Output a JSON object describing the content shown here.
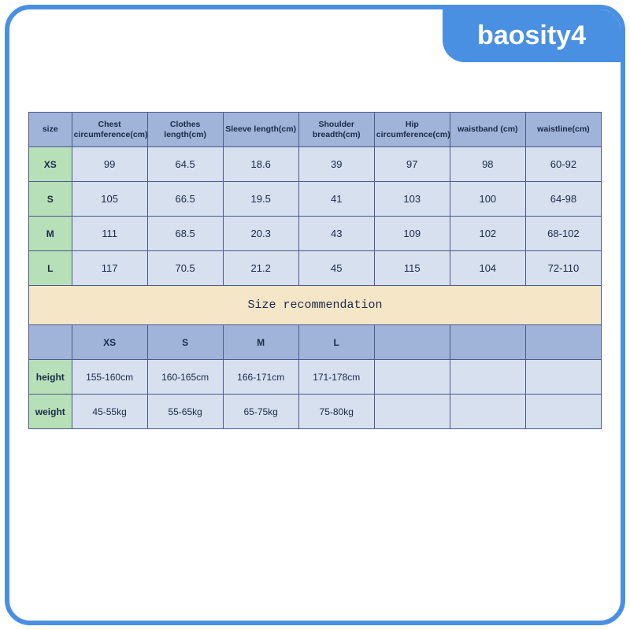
{
  "brand": "baosity4",
  "table1": {
    "headers": [
      "size",
      "Chest circumference(cm)",
      "Clothes length(cm)",
      "Sleeve length(cm)",
      "Shoulder breadth(cm)",
      "Hip circumference(cm)",
      "waistband (cm)",
      "waistline(cm)"
    ],
    "rows": [
      {
        "size": "XS",
        "vals": [
          "99",
          "64.5",
          "18.6",
          "39",
          "97",
          "98",
          "60-92"
        ]
      },
      {
        "size": "S",
        "vals": [
          "105",
          "66.5",
          "19.5",
          "41",
          "103",
          "100",
          "64-98"
        ]
      },
      {
        "size": "M",
        "vals": [
          "111",
          "68.5",
          "20.3",
          "43",
          "109",
          "102",
          "68-102"
        ]
      },
      {
        "size": "L",
        "vals": [
          "117",
          "70.5",
          "21.2",
          "45",
          "115",
          "104",
          "72-110"
        ]
      }
    ]
  },
  "recommendation": {
    "banner": "Size recommendation",
    "cols": [
      "XS",
      "S",
      "M",
      "L"
    ],
    "rows": [
      {
        "label": "height",
        "vals": [
          "155-160cm",
          "160-165cm",
          "166-171cm",
          "171-178cm"
        ]
      },
      {
        "label": "weight",
        "vals": [
          "45-55kg",
          "55-65kg",
          "65-75kg",
          "75-80kg"
        ]
      }
    ]
  },
  "colors": {
    "frame": "#4a90e2",
    "header_bg": "#9fb4d8",
    "size_bg": "#b8e0b8",
    "data_bg": "#d6e0ef",
    "banner_bg": "#f5e6c8",
    "border": "#4a5a8a",
    "text": "#1a2a4a"
  }
}
